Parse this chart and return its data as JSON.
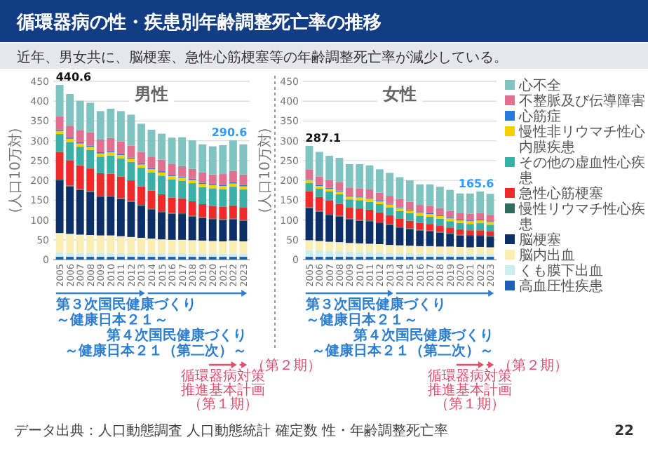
{
  "chart_data": [
    {
      "type": "bar",
      "stacked": true,
      "title": "男性",
      "ylabel": "(人口10万対)",
      "ylim": [
        0,
        450
      ],
      "yticks": [
        0,
        50,
        100,
        150,
        200,
        250,
        300,
        350,
        400,
        450
      ],
      "grid": "y",
      "legend": false,
      "categories": [
        "2005",
        "2006",
        "2007",
        "2008",
        "2009",
        "2010",
        "2011",
        "2012",
        "2013",
        "2014",
        "2015",
        "2016",
        "2017",
        "2018",
        "2019",
        "2020",
        "2021",
        "2022",
        "2023"
      ],
      "series": [
        {
          "color": "#1f5fb0",
          "values": [
            7,
            7,
            7,
            7,
            7,
            7,
            7,
            7,
            7,
            7,
            7,
            7,
            7,
            7,
            7,
            7,
            7,
            7,
            7
          ]
        },
        {
          "color": "#cdeeee",
          "values": [
            11,
            10,
            10,
            10,
            10,
            10,
            9,
            9,
            9,
            9,
            9,
            9,
            9,
            8,
            8,
            8,
            8,
            8,
            8
          ]
        },
        {
          "color": "#fbeeb5",
          "values": [
            49,
            48,
            46,
            45,
            44,
            44,
            43,
            41,
            39,
            37,
            35,
            34,
            34,
            34,
            33,
            32,
            31,
            33,
            31
          ]
        },
        {
          "color": "#0b2f66",
          "values": [
            133,
            120,
            113,
            109,
            98,
            98,
            94,
            89,
            81,
            74,
            69,
            66,
            65,
            60,
            57,
            54,
            54,
            54,
            52
          ]
        },
        {
          "color": "#2e6b5e",
          "values": [
            2,
            2,
            2,
            2,
            2,
            2,
            2,
            2,
            2,
            2,
            2,
            2,
            2,
            2,
            2,
            2,
            2,
            2,
            2
          ]
        },
        {
          "color": "#ee2a2a",
          "values": [
            70,
            64,
            60,
            57,
            57,
            56,
            55,
            52,
            47,
            45,
            43,
            39,
            38,
            36,
            33,
            32,
            32,
            33,
            31
          ]
        },
        {
          "color": "#3bb0a8",
          "values": [
            45,
            46,
            47,
            47,
            42,
            46,
            46,
            47,
            47,
            46,
            47,
            46,
            44,
            46,
            43,
            45,
            44,
            47,
            46
          ]
        },
        {
          "color": "#f5d000",
          "values": [
            8,
            8,
            8,
            8,
            8,
            8,
            8,
            8,
            8,
            8,
            8,
            8,
            8,
            8,
            8,
            8,
            8,
            8,
            8
          ]
        },
        {
          "color": "#2979d9",
          "values": [
            3,
            3,
            3,
            3,
            3,
            3,
            3,
            3,
            3,
            3,
            3,
            3,
            3,
            3,
            3,
            3,
            3,
            3,
            3
          ]
        },
        {
          "color": "#e07090",
          "values": [
            34,
            30,
            30,
            33,
            32,
            33,
            31,
            30,
            29,
            29,
            29,
            27,
            26,
            25,
            26,
            24,
            27,
            29,
            27
          ]
        },
        {
          "color": "#7fc4c0",
          "values": [
            79,
            80,
            75,
            75,
            72,
            74,
            77,
            78,
            71,
            68,
            66,
            67,
            73,
            72,
            71,
            71,
            73,
            77,
            76
          ]
        }
      ],
      "totals": [
        "440.6",
        null,
        null,
        null,
        null,
        null,
        null,
        null,
        null,
        null,
        null,
        null,
        null,
        null,
        null,
        null,
        null,
        null,
        "290.6"
      ],
      "annotations": [
        "循環器病の性・疾患別年齢調整死亡率の推移",
        "近年、男女共に、脳梗塞、急性心筋梗塞等の年齢調整死亡率が減少している。",
        "データ出典：人口動態調査 人口動態統計 確定数 性・年齢調整死亡率",
        "22",
        "第３次国民健康づくり～健康日本２１～",
        "第４次国民健康づくり～健康日本２１（第二次）～",
        "循環器病対策推進基本計画（第１期）",
        "（第２期）"
      ]
    },
    {
      "type": "bar",
      "stacked": true,
      "title": "女性",
      "ylabel": "(人口10万対)",
      "ylim": [
        0,
        450
      ],
      "yticks": [
        0,
        50,
        100,
        150,
        200,
        250,
        300,
        350,
        400,
        450
      ],
      "grid": "y",
      "legend": "right",
      "categories": [
        "2005",
        "2006",
        "2007",
        "2008",
        "2009",
        "2010",
        "2011",
        "2012",
        "2013",
        "2014",
        "2015",
        "2016",
        "2017",
        "2018",
        "2019",
        "2020",
        "2021",
        "2022",
        "2023"
      ],
      "series": [
        {
          "name": "高血圧性疾患",
          "color": "#1f5fb0",
          "values": [
            7,
            7,
            7,
            7,
            7,
            7,
            7,
            7,
            7,
            7,
            7,
            7,
            7,
            7,
            7,
            7,
            7,
            7,
            7
          ]
        },
        {
          "name": "くも膜下出血",
          "color": "#cdeeee",
          "values": [
            17,
            16,
            15,
            14,
            13,
            12,
            12,
            11,
            10,
            9,
            9,
            8,
            8,
            8,
            7,
            7,
            7,
            7,
            7
          ]
        },
        {
          "name": "脳内出血",
          "color": "#fbeeb5",
          "values": [
            25,
            24,
            23,
            23,
            22,
            22,
            21,
            21,
            20,
            20,
            19,
            19,
            19,
            18,
            19,
            18,
            17,
            18,
            17
          ]
        },
        {
          "name": "脳梗塞",
          "color": "#0b2f66",
          "values": [
            81,
            74,
            68,
            65,
            60,
            57,
            57,
            53,
            50,
            45,
            42,
            39,
            37,
            35,
            32,
            29,
            29,
            28,
            27
          ]
        },
        {
          "name": "慢性リウマチ性心疾患",
          "color": "#2e6b5e",
          "values": [
            2,
            2,
            2,
            2,
            2,
            2,
            2,
            2,
            2,
            2,
            2,
            2,
            2,
            2,
            2,
            2,
            2,
            2,
            2
          ]
        },
        {
          "name": "急性心筋梗塞",
          "color": "#ee2a2a",
          "values": [
            41,
            35,
            34,
            30,
            27,
            29,
            27,
            25,
            23,
            21,
            19,
            18,
            17,
            15,
            14,
            13,
            12,
            12,
            12
          ]
        },
        {
          "name": "その他の虚血性心疾患",
          "color": "#3bb0a8",
          "values": [
            21,
            21,
            23,
            24,
            21,
            21,
            20,
            21,
            20,
            19,
            19,
            18,
            18,
            18,
            16,
            16,
            16,
            18,
            16
          ]
        },
        {
          "name": "慢性非リウマチ性心内膜疾患",
          "color": "#f5d000",
          "values": [
            7,
            7,
            7,
            7,
            7,
            7,
            7,
            7,
            7,
            7,
            7,
            7,
            7,
            7,
            7,
            7,
            7,
            7,
            7
          ]
        },
        {
          "name": "心筋症",
          "color": "#2979d9",
          "values": [
            2,
            2,
            2,
            2,
            2,
            2,
            2,
            2,
            2,
            2,
            2,
            2,
            2,
            2,
            2,
            2,
            2,
            2,
            2
          ]
        },
        {
          "name": "不整脈及び伝導障害",
          "color": "#e07090",
          "values": [
            25,
            22,
            20,
            22,
            21,
            21,
            22,
            20,
            20,
            21,
            20,
            18,
            19,
            18,
            17,
            16,
            17,
            17,
            16
          ]
        },
        {
          "name": "心不全",
          "color": "#7fc4c0",
          "values": [
            59,
            62,
            61,
            61,
            59,
            61,
            61,
            59,
            58,
            55,
            54,
            52,
            54,
            54,
            53,
            50,
            51,
            54,
            53
          ]
        }
      ],
      "totals": [
        "287.1",
        null,
        null,
        null,
        null,
        null,
        null,
        null,
        null,
        null,
        null,
        null,
        null,
        null,
        null,
        null,
        null,
        null,
        "165.6"
      ],
      "annotations": [
        "第３次国民健康づくり～健康日本２１～",
        "第４次国民健康づくり～健康日本２１（第二次）～",
        "循環器病対策推進基本計画（第１期）",
        "（第２期）"
      ]
    }
  ]
}
